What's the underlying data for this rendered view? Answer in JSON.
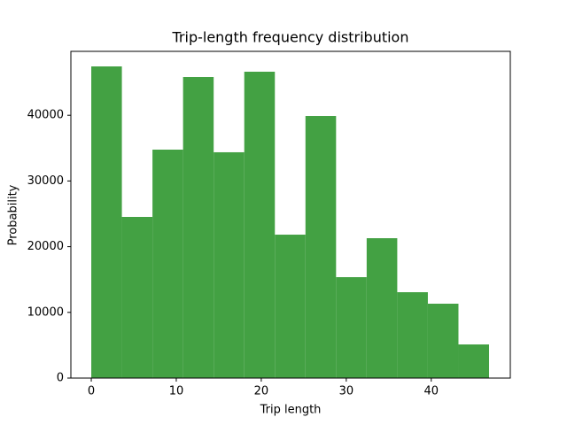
{
  "chart_data": {
    "type": "histogram",
    "title": "Trip-length frequency distribution",
    "x_label": "Trip length",
    "y_label": "Probability",
    "bins": [
      0,
      3.6,
      7.2,
      10.8,
      14.4,
      18,
      21.6,
      25.2,
      28.8,
      32.4,
      36,
      39.6,
      43.2,
      46.8
    ],
    "values": [
      47440,
      24530,
      34770,
      45820,
      34370,
      46630,
      21830,
      39890,
      15360,
      21290,
      13070,
      11320,
      5120
    ],
    "color": "#43a143",
    "xlim": [
      -2.4,
      49.3
    ],
    "xticks": [
      0,
      10,
      20,
      30,
      40
    ],
    "ylim": [
      0,
      49730
    ],
    "yticks": [
      0,
      10000,
      20000,
      30000,
      40000
    ]
  }
}
